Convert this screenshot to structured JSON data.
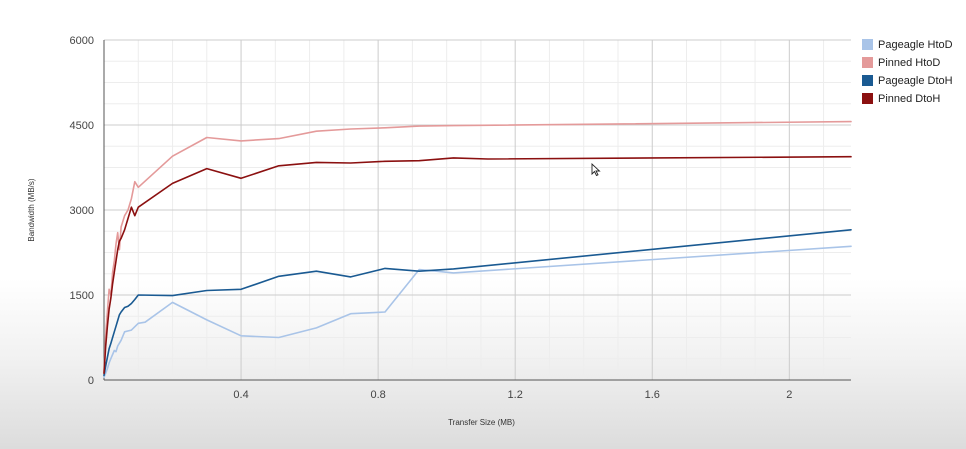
{
  "chart_data": {
    "type": "line",
    "title": "",
    "xlabel": "Transfer Size (MB)",
    "ylabel": "Bandwidth (MB/s)",
    "xlim": [
      0,
      2.18
    ],
    "ylim": [
      0,
      6000
    ],
    "x_ticks": [
      0.4,
      0.8,
      1.2,
      1.6,
      2
    ],
    "x_tick_labels": [
      "0.4",
      "0.8",
      "1.2",
      "1.6",
      "2"
    ],
    "y_ticks": [
      0,
      1500,
      3000,
      4500,
      6000
    ],
    "y_tick_labels": [
      "0",
      "1500",
      "3000",
      "4500",
      "6000"
    ],
    "grid": true,
    "legend_position": "top-right",
    "series": [
      {
        "name": "Pageagle HtoD",
        "color": "#a9c4e8",
        "x": [
          0,
          0.005,
          0.01,
          0.015,
          0.02,
          0.025,
          0.03,
          0.035,
          0.04,
          0.045,
          0.05,
          0.06,
          0.08,
          0.1,
          0.12,
          0.2,
          0.3,
          0.4,
          0.51,
          0.62,
          0.72,
          0.82,
          0.92,
          1.02,
          2.18
        ],
        "y": [
          50,
          120,
          200,
          300,
          380,
          450,
          520,
          500,
          600,
          650,
          700,
          850,
          880,
          1000,
          1020,
          1370,
          1060,
          780,
          750,
          920,
          1170,
          1200,
          1950,
          1890,
          2360
        ]
      },
      {
        "name": "Pinned HtoD",
        "color": "#e49a9a",
        "x": [
          0,
          0.005,
          0.01,
          0.015,
          0.02,
          0.025,
          0.03,
          0.035,
          0.04,
          0.045,
          0.05,
          0.06,
          0.07,
          0.08,
          0.09,
          0.1,
          0.2,
          0.3,
          0.4,
          0.51,
          0.62,
          0.72,
          0.82,
          0.92,
          1.02,
          2.18
        ],
        "y": [
          100,
          800,
          1200,
          1600,
          1500,
          1900,
          2100,
          2400,
          2600,
          2300,
          2700,
          2900,
          3000,
          3200,
          3500,
          3400,
          3950,
          4280,
          4220,
          4260,
          4390,
          4430,
          4450,
          4480,
          4490,
          4560
        ]
      },
      {
        "name": "Pageagle DtoH",
        "color": "#1a5a92",
        "x": [
          0,
          0.005,
          0.01,
          0.015,
          0.02,
          0.025,
          0.03,
          0.035,
          0.04,
          0.045,
          0.05,
          0.06,
          0.07,
          0.08,
          0.09,
          0.1,
          0.2,
          0.3,
          0.4,
          0.51,
          0.62,
          0.72,
          0.82,
          0.92,
          1.02,
          2.18
        ],
        "y": [
          80,
          250,
          400,
          550,
          650,
          750,
          850,
          950,
          1050,
          1150,
          1200,
          1280,
          1300,
          1350,
          1420,
          1500,
          1490,
          1580,
          1600,
          1830,
          1920,
          1820,
          1970,
          1920,
          1960,
          2650
        ]
      },
      {
        "name": "Pinned DtoH",
        "color": "#8b1010",
        "x": [
          0,
          0.005,
          0.01,
          0.015,
          0.02,
          0.025,
          0.03,
          0.035,
          0.04,
          0.045,
          0.05,
          0.06,
          0.07,
          0.08,
          0.09,
          0.1,
          0.2,
          0.3,
          0.4,
          0.51,
          0.62,
          0.72,
          0.82,
          0.92,
          1.02,
          1.12,
          2.18
        ],
        "y": [
          120,
          600,
          950,
          1250,
          1450,
          1700,
          1900,
          2100,
          2300,
          2450,
          2500,
          2650,
          2850,
          3050,
          2900,
          3050,
          3470,
          3730,
          3560,
          3780,
          3840,
          3830,
          3860,
          3870,
          3920,
          3900,
          3940
        ]
      }
    ]
  }
}
